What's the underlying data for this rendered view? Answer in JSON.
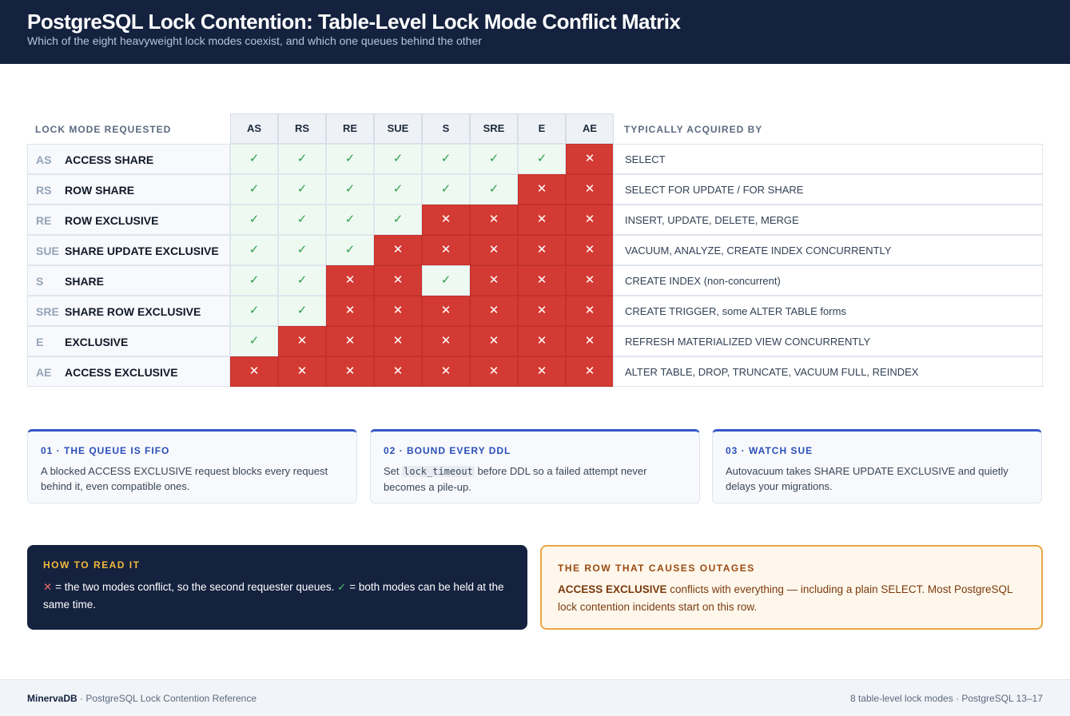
{
  "header": {
    "title": "PostgreSQL Lock Contention: Table-Level Lock Mode Conflict Matrix",
    "subtitle": "Which of the eight heavyweight lock modes coexist, and which one queues behind the other"
  },
  "matrix": {
    "row_header": "LOCK MODE REQUESTED",
    "acquired_header": "TYPICALLY ACQUIRED BY",
    "columns": [
      "AS",
      "RS",
      "RE",
      "SUE",
      "S",
      "SRE",
      "E",
      "AE"
    ],
    "ok_symbol": "✓",
    "conflict_symbol": "✕",
    "rows": [
      {
        "abbr": "AS",
        "name": "ACCESS SHARE",
        "acquired_by": "SELECT",
        "cells": [
          1,
          1,
          1,
          1,
          1,
          1,
          1,
          0
        ]
      },
      {
        "abbr": "RS",
        "name": "ROW SHARE",
        "acquired_by": "SELECT FOR UPDATE / FOR SHARE",
        "cells": [
          1,
          1,
          1,
          1,
          1,
          1,
          0,
          0
        ]
      },
      {
        "abbr": "RE",
        "name": "ROW EXCLUSIVE",
        "acquired_by": "INSERT, UPDATE, DELETE, MERGE",
        "cells": [
          1,
          1,
          1,
          1,
          0,
          0,
          0,
          0
        ]
      },
      {
        "abbr": "SUE",
        "name": "SHARE UPDATE EXCLUSIVE",
        "acquired_by": "VACUUM, ANALYZE, CREATE INDEX CONCURRENTLY",
        "cells": [
          1,
          1,
          1,
          0,
          0,
          0,
          0,
          0
        ]
      },
      {
        "abbr": "S",
        "name": "SHARE",
        "acquired_by": "CREATE INDEX (non-concurrent)",
        "cells": [
          1,
          1,
          0,
          0,
          1,
          0,
          0,
          0
        ]
      },
      {
        "abbr": "SRE",
        "name": "SHARE ROW EXCLUSIVE",
        "acquired_by": "CREATE TRIGGER, some ALTER TABLE forms",
        "cells": [
          1,
          1,
          0,
          0,
          0,
          0,
          0,
          0
        ]
      },
      {
        "abbr": "E",
        "name": "EXCLUSIVE",
        "acquired_by": "REFRESH MATERIALIZED VIEW CONCURRENTLY",
        "cells": [
          1,
          0,
          0,
          0,
          0,
          0,
          0,
          0
        ]
      },
      {
        "abbr": "AE",
        "name": "ACCESS EXCLUSIVE",
        "acquired_by": "ALTER TABLE, DROP, TRUNCATE, VACUUM FULL, REINDEX",
        "cells": [
          0,
          0,
          0,
          0,
          0,
          0,
          0,
          0
        ]
      }
    ]
  },
  "tips": [
    {
      "title": "01 · THE QUEUE IS FIFO",
      "body_before": "A blocked ACCESS EXCLUSIVE request blocks every request behind it, even compatible ones.",
      "code": "",
      "body_after": ""
    },
    {
      "title": "02 · BOUND EVERY DDL",
      "body_before": "Set ",
      "code": "lock_timeout",
      "body_after": " before DDL so a failed attempt never becomes a pile-up."
    },
    {
      "title": "03 · WATCH SUE",
      "body_before": "Autovacuum takes SHARE UPDATE EXCLUSIVE and quietly delays your migrations.",
      "code": "",
      "body_after": ""
    }
  ],
  "legend": {
    "title": "HOW TO READ IT",
    "conflict_symbol": "✕",
    "conflict_text": " = the two modes conflict, so the second requester queues. ",
    "ok_symbol": "✓",
    "ok_text": " = both modes can be held at the same time."
  },
  "warning": {
    "title": "THE ROW THAT CAUSES OUTAGES",
    "strong": "ACCESS EXCLUSIVE",
    "text": " conflicts with everything — including a plain SELECT. Most PostgreSQL lock contention incidents start on this row."
  },
  "footer": {
    "brand": "MinervaDB",
    "left": " · PostgreSQL Lock Contention Reference",
    "right": "8 table-level lock modes · PostgreSQL 13–17"
  },
  "colors": {
    "header_bg": "#14223f",
    "conflict": "#d33a33",
    "compatible": "#2f9e4f",
    "accent": "#3357c8",
    "warning_border": "#e9a642"
  }
}
